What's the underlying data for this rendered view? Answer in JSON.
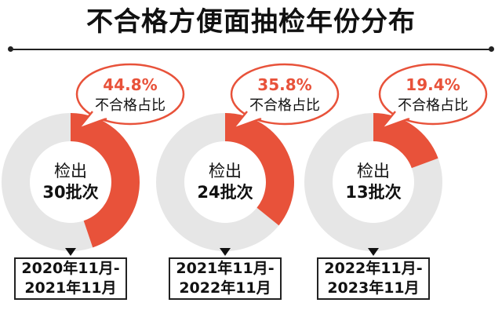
{
  "title": "不合格方便面抽检年份分布",
  "colors": {
    "accent": "#e8523a",
    "track": "#e6e6e6",
    "text": "#111111"
  },
  "chart_data": {
    "type": "pie",
    "panels": [
      {
        "defect_share_pct": 44.8,
        "value_label": "44.8%",
        "value_caption": "不合格占比",
        "center_line1": "检出",
        "center_line2": "30批次",
        "period_line1": "2020年11月-",
        "period_line2": "2021年11月"
      },
      {
        "defect_share_pct": 35.8,
        "value_label": "35.8%",
        "value_caption": "不合格占比",
        "center_line1": "检出",
        "center_line2": "24批次",
        "period_line1": "2021年11月-",
        "period_line2": "2022年11月"
      },
      {
        "defect_share_pct": 19.4,
        "value_label": "19.4%",
        "value_caption": "不合格占比",
        "center_line1": "检出",
        "center_line2": "13批次",
        "period_line1": "2022年11月-",
        "period_line2": "2023年11月"
      }
    ]
  }
}
